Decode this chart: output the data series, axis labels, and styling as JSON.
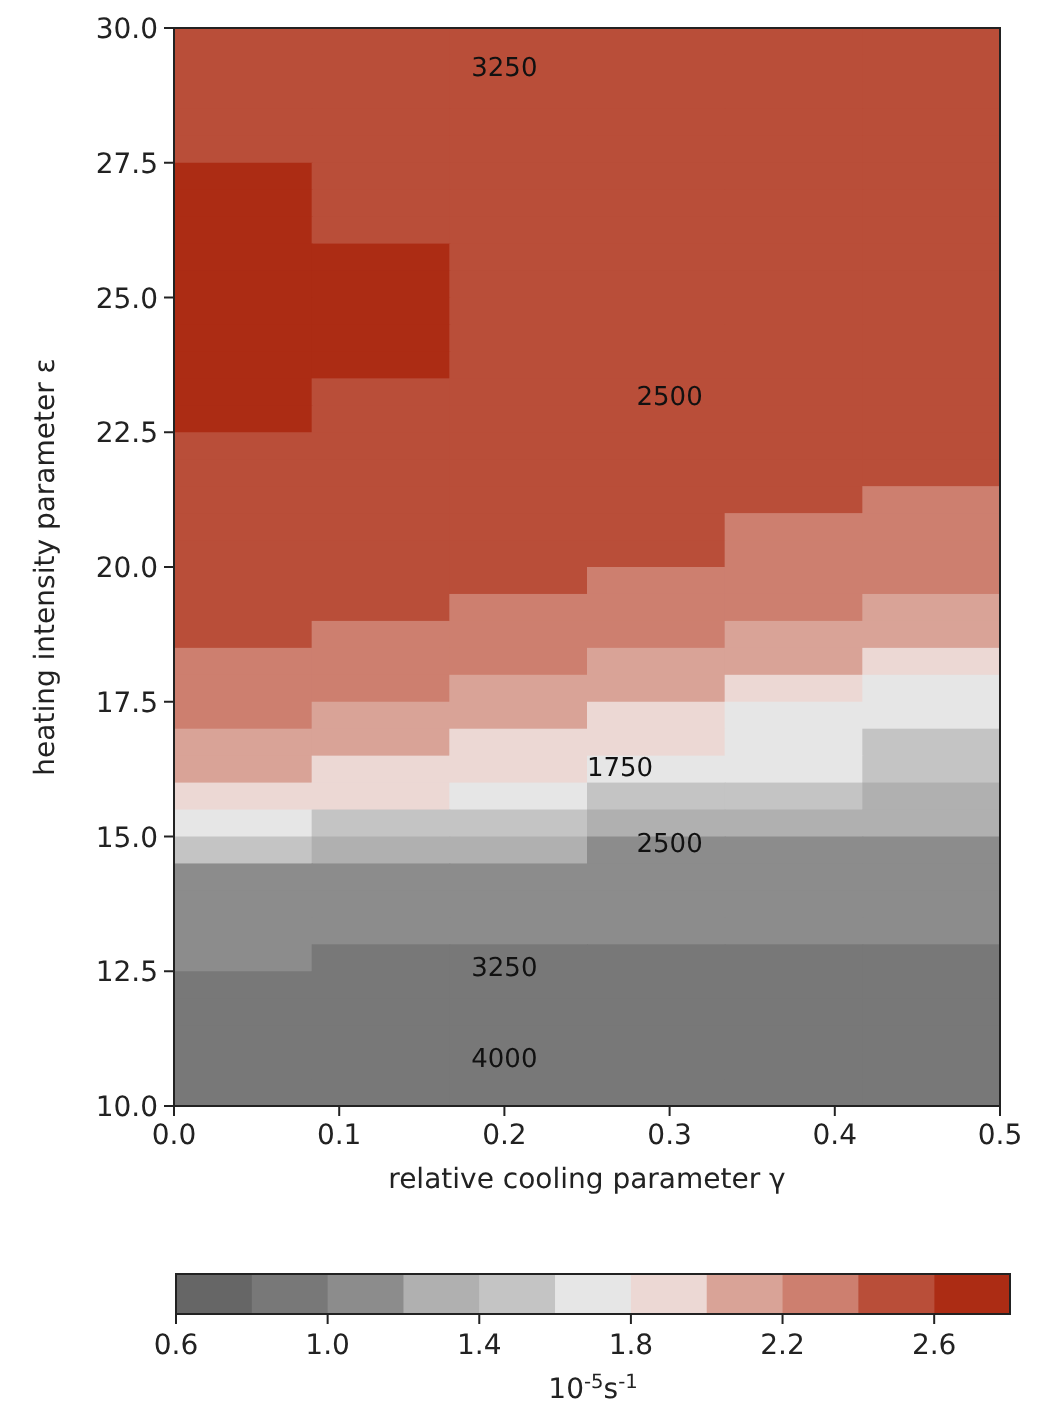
{
  "chart_data": {
    "type": "heatmap",
    "xlabel": "relative cooling parameter γ",
    "ylabel": "heating intensity parameter ε",
    "clabel": "10$^{-5}$s$^{-1}$",
    "xlim": [
      0,
      0.5
    ],
    "xticks": [
      {
        "value": 0,
        "label": "0.0"
      },
      0.1,
      0.2,
      0.3,
      0.4,
      0.5
    ],
    "ylim": [
      10,
      30
    ],
    "yticks": [
      {
        "value": 10,
        "label": "10.0"
      },
      12.5,
      {
        "value": 15,
        "label": "15.0"
      },
      17.5,
      {
        "value": 20,
        "label": "20.0"
      },
      22.5,
      {
        "value": 25,
        "label": "25.0"
      },
      27.5,
      {
        "value": 30,
        "label": "30.0"
      }
    ],
    "clim": [
      0.6,
      2.8
    ],
    "cticks": [
      0.6,
      {
        "value": 1,
        "label": "1.0"
      },
      1.4,
      1.8,
      2.2,
      2.6
    ],
    "colors": [
      "#666666",
      "#787878",
      "#8c8c8c",
      "#b0b0b0",
      "#c4c4c4",
      "#e6e6e6",
      "#ecd8d4",
      "#d9a397",
      "#cd7f6f",
      "#b94e39",
      "#ac2c14"
    ],
    "cells": [
      [
        2.5,
        2.5,
        2.5,
        2.5,
        2.5,
        2.5
      ],
      [
        2.5,
        2.5,
        2.5,
        2.5,
        2.5,
        2.5
      ],
      [
        2.5,
        2.5,
        2.5,
        2.5,
        2.5,
        2.5
      ],
      [
        2.5,
        2.5,
        2.5,
        2.5,
        2.5,
        2.5
      ],
      [
        2.5,
        2.5,
        2.5,
        2.5,
        2.5,
        2.5
      ],
      [
        2.7,
        2.5,
        2.5,
        2.5,
        2.5,
        2.5
      ],
      [
        2.7,
        2.5,
        2.5,
        2.5,
        2.5,
        2.5
      ],
      [
        2.7,
        2.5,
        2.5,
        2.5,
        2.5,
        2.5
      ],
      [
        2.7,
        2.7,
        2.5,
        2.5,
        2.5,
        2.5
      ],
      [
        2.7,
        2.7,
        2.5,
        2.5,
        2.5,
        2.5
      ],
      [
        2.7,
        2.7,
        2.5,
        2.5,
        2.5,
        2.5
      ],
      [
        2.7,
        2.7,
        2.5,
        2.5,
        2.5,
        2.5
      ],
      [
        2.7,
        2.7,
        2.5,
        2.5,
        2.5,
        2.5
      ],
      [
        2.7,
        2.5,
        2.5,
        2.5,
        2.5,
        2.5
      ],
      [
        2.7,
        2.5,
        2.5,
        2.5,
        2.5,
        2.5
      ],
      [
        2.5,
        2.5,
        2.5,
        2.5,
        2.5,
        2.5
      ],
      [
        2.5,
        2.5,
        2.5,
        2.5,
        2.5,
        2.5
      ],
      [
        2.5,
        2.5,
        2.5,
        2.5,
        2.5,
        2.3
      ],
      [
        2.5,
        2.5,
        2.5,
        2.5,
        2.3,
        2.3
      ],
      [
        2.5,
        2.5,
        2.5,
        2.5,
        2.3,
        2.3
      ],
      [
        2.5,
        2.5,
        2.5,
        2.3,
        2.3,
        2.3
      ],
      [
        2.5,
        2.5,
        2.3,
        2.3,
        2.3,
        2.1
      ],
      [
        2.5,
        2.3,
        2.3,
        2.3,
        2.1,
        2.1
      ],
      [
        2.3,
        2.3,
        2.3,
        2.1,
        2.1,
        1.9
      ],
      [
        2.3,
        2.3,
        2.1,
        2.1,
        1.9,
        1.7
      ],
      [
        2.3,
        2.1,
        2.1,
        1.9,
        1.7,
        1.7
      ],
      [
        2.1,
        2.1,
        1.9,
        1.9,
        1.7,
        1.5
      ],
      [
        2.1,
        1.9,
        1.9,
        1.7,
        1.7,
        1.5
      ],
      [
        1.9,
        1.9,
        1.7,
        1.5,
        1.5,
        1.3
      ],
      [
        1.7,
        1.5,
        1.5,
        1.3,
        1.3,
        1.3
      ],
      [
        1.5,
        1.3,
        1.3,
        1.1,
        1.1,
        1.1
      ],
      [
        1.1,
        1.1,
        1.1,
        1.1,
        1.1,
        1.1
      ],
      [
        1.1,
        1.1,
        1.1,
        1.1,
        1.1,
        1.1
      ],
      [
        1.1,
        1.1,
        1.1,
        1.1,
        1.1,
        1.1
      ],
      [
        1.1,
        0.9,
        0.9,
        0.9,
        0.9,
        0.9
      ],
      [
        0.9,
        0.9,
        0.9,
        0.9,
        0.9,
        0.9
      ],
      [
        0.9,
        0.9,
        0.9,
        0.9,
        0.9,
        0.9
      ],
      [
        0.9,
        0.9,
        0.9,
        0.9,
        0.9,
        0.9
      ],
      [
        0.9,
        0.9,
        0.9,
        0.9,
        0.9,
        0.9
      ],
      [
        0.9,
        0.9,
        0.9,
        0.9,
        0.9,
        0.9
      ]
    ],
    "annotations": [
      "3250",
      "2500",
      "1750",
      "2500",
      "3250",
      "4000"
    ]
  }
}
